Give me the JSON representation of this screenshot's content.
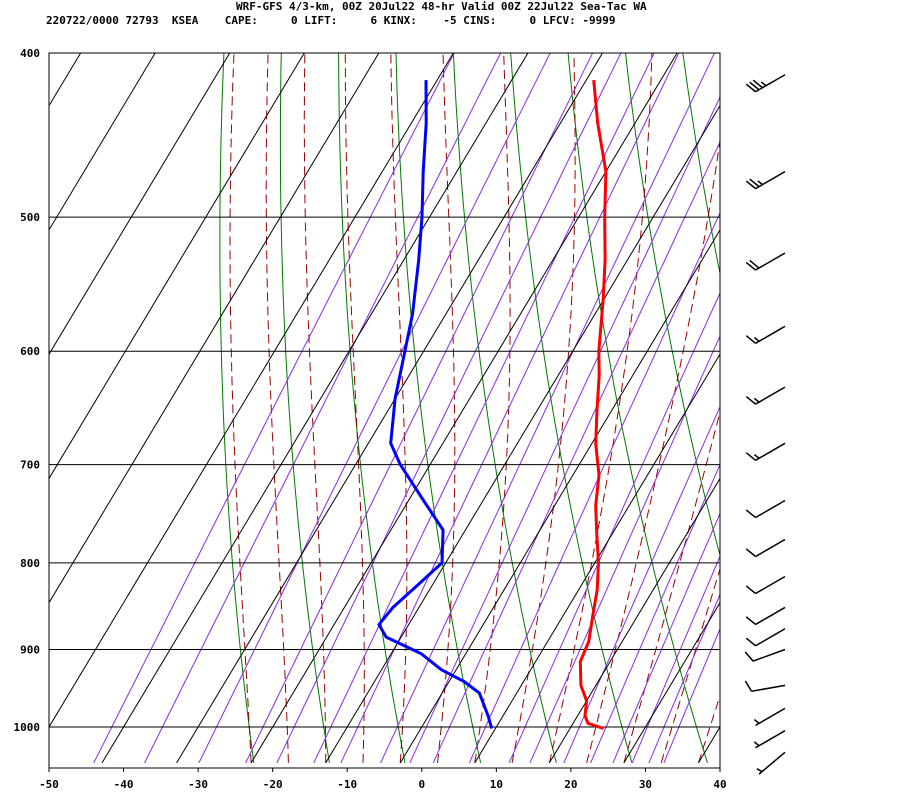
{
  "header": {
    "line1": "WRF-GFS 4/3-km, 00Z 20Jul22 48-hr Valid 00Z 22Jul22 Sea-Tac WA",
    "line2": "220722/0000 72793  KSEA    CAPE:     0 LIFT:     6 KINX:    -5 CINS:     0 LFCV: -9999"
  },
  "chart_data": {
    "type": "line",
    "chart_kind": "skew-T log-p sounding",
    "xlabel": "",
    "ylabel": "",
    "xlim": [
      -50,
      40
    ],
    "ylim_hPa": [
      1045,
      400
    ],
    "y_scale": "log",
    "grid": true,
    "x_ticks": [
      -50,
      -40,
      -30,
      -20,
      -10,
      0,
      10,
      20,
      30,
      40
    ],
    "x_tick_labels": [
      "-50",
      "-40",
      "-30",
      "-20",
      "-10",
      "0",
      "10",
      "20",
      "30",
      "40"
    ],
    "y_ticks": [
      400,
      500,
      600,
      700,
      800,
      900,
      1000
    ],
    "y_tick_labels": [
      "400",
      "500",
      "600",
      "700",
      "800",
      "900",
      "1000"
    ],
    "series": [
      {
        "color": "#ff0000",
        "points": [
          {
            "p": 1002,
            "t": 24.5
          },
          {
            "p": 995,
            "t": 22.0
          },
          {
            "p": 985,
            "t": 21.0
          },
          {
            "p": 965,
            "t": 20.0
          },
          {
            "p": 945,
            "t": 18.0
          },
          {
            "p": 915,
            "t": 16.0
          },
          {
            "p": 890,
            "t": 15.5
          },
          {
            "p": 860,
            "t": 14.0
          },
          {
            "p": 830,
            "t": 12.5
          },
          {
            "p": 800,
            "t": 10.5
          },
          {
            "p": 770,
            "t": 8.0
          },
          {
            "p": 740,
            "t": 5.5
          },
          {
            "p": 710,
            "t": 3.5
          },
          {
            "p": 680,
            "t": 0.5
          },
          {
            "p": 650,
            "t": -2.0
          },
          {
            "p": 620,
            "t": -4.5
          },
          {
            "p": 600,
            "t": -6.5
          },
          {
            "p": 560,
            "t": -10.0
          },
          {
            "p": 530,
            "t": -13.0
          },
          {
            "p": 500,
            "t": -16.5
          },
          {
            "p": 470,
            "t": -20.0
          },
          {
            "p": 440,
            "t": -25.0
          },
          {
            "p": 415,
            "t": -29.0
          }
        ]
      },
      {
        "color": "#0000ff",
        "points": [
          {
            "p": 1002,
            "t": 9.5
          },
          {
            "p": 985,
            "t": 8.0
          },
          {
            "p": 955,
            "t": 5.0
          },
          {
            "p": 940,
            "t": 2.0
          },
          {
            "p": 925,
            "t": -2.0
          },
          {
            "p": 905,
            "t": -6.0
          },
          {
            "p": 885,
            "t": -12.0
          },
          {
            "p": 870,
            "t": -14.0
          },
          {
            "p": 850,
            "t": -13.5
          },
          {
            "p": 825,
            "t": -12.0
          },
          {
            "p": 800,
            "t": -10.5
          },
          {
            "p": 765,
            "t": -13.0
          },
          {
            "p": 735,
            "t": -18.0
          },
          {
            "p": 700,
            "t": -24.0
          },
          {
            "p": 680,
            "t": -27.0
          },
          {
            "p": 640,
            "t": -30.0
          },
          {
            "p": 600,
            "t": -32.5
          },
          {
            "p": 570,
            "t": -34.5
          },
          {
            "p": 530,
            "t": -38.0
          },
          {
            "p": 500,
            "t": -41.0
          },
          {
            "p": 470,
            "t": -44.5
          },
          {
            "p": 440,
            "t": -48.0
          },
          {
            "p": 415,
            "t": -51.5
          }
        ]
      }
    ],
    "wind_barbs": [
      {
        "p": 412,
        "dir": 240,
        "speed_kt": 35
      },
      {
        "p": 470,
        "dir": 240,
        "speed_kt": 25
      },
      {
        "p": 525,
        "dir": 240,
        "speed_kt": 20
      },
      {
        "p": 580,
        "dir": 240,
        "speed_kt": 15
      },
      {
        "p": 630,
        "dir": 240,
        "speed_kt": 15
      },
      {
        "p": 680,
        "dir": 240,
        "speed_kt": 15
      },
      {
        "p": 735,
        "dir": 240,
        "speed_kt": 10
      },
      {
        "p": 775,
        "dir": 240,
        "speed_kt": 10
      },
      {
        "p": 815,
        "dir": 240,
        "speed_kt": 10
      },
      {
        "p": 850,
        "dir": 240,
        "speed_kt": 10
      },
      {
        "p": 875,
        "dir": 240,
        "speed_kt": 10
      },
      {
        "p": 900,
        "dir": 250,
        "speed_kt": 10
      },
      {
        "p": 945,
        "dir": 260,
        "speed_kt": 10
      },
      {
        "p": 975,
        "dir": 240,
        "speed_kt": 5
      },
      {
        "p": 1005,
        "dir": 240,
        "speed_kt": 5
      },
      {
        "p": 1035,
        "dir": 230,
        "speed_kt": 5
      }
    ],
    "background_lines": {
      "isotherms_color": "#000000",
      "dry_adiabats_color": "#007700",
      "moist_adiabats_color": "#990000",
      "mixing_ratio_color": "#8a2be2"
    }
  }
}
